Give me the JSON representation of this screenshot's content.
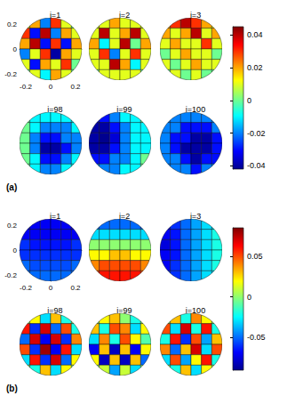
{
  "chart_data": [
    {
      "type": "heatmap",
      "panel_label": "(a)",
      "xlim": [
        -0.25,
        0.25
      ],
      "ylim": [
        -0.25,
        0.25
      ],
      "xticks": [
        -0.2,
        0,
        0.2
      ],
      "yticks": [
        -0.2,
        0,
        0.2
      ],
      "colorbar": {
        "range": [
          -0.042,
          0.045
        ],
        "ticks": [
          -0.04,
          -0.02,
          0,
          0.02,
          0.04
        ]
      },
      "spheres": [
        {
          "title": "i=1",
          "cells": [
            [
              0.01,
              0.02,
              -0.02,
              0.03,
              0.01,
              0.0
            ],
            [
              0.03,
              -0.03,
              0.04,
              -0.02,
              0.02,
              0.01
            ],
            [
              0.02,
              0.04,
              -0.03,
              0.03,
              -0.03,
              0.02
            ],
            [
              -0.02,
              0.01,
              0.03,
              -0.04,
              0.02,
              0.01
            ],
            [
              0.01,
              -0.03,
              0.02,
              0.01,
              0.03,
              0.0
            ],
            [
              0.0,
              0.01,
              -0.01,
              0.02,
              0.01,
              0.0
            ]
          ]
        },
        {
          "title": "i=2",
          "cells": [
            [
              0.01,
              0.01,
              0.02,
              0.01,
              0.01,
              0.01
            ],
            [
              0.01,
              0.04,
              0.01,
              0.02,
              0.04,
              0.01
            ],
            [
              0.02,
              -0.01,
              0.01,
              0.04,
              0.0,
              0.02
            ],
            [
              0.01,
              0.03,
              -0.02,
              0.01,
              0.03,
              0.01
            ],
            [
              0.01,
              0.01,
              0.04,
              0.02,
              -0.01,
              0.01
            ],
            [
              0.0,
              0.01,
              0.01,
              0.01,
              0.01,
              0.0
            ]
          ]
        },
        {
          "title": "i=3",
          "cells": [
            [
              0.02,
              0.03,
              0.04,
              0.03,
              0.02,
              0.01
            ],
            [
              0.02,
              0.01,
              0.02,
              0.04,
              0.01,
              0.02
            ],
            [
              0.01,
              0.02,
              0.01,
              0.01,
              0.03,
              0.01
            ],
            [
              0.0,
              0.01,
              0.02,
              0.01,
              0.01,
              0.0
            ],
            [
              0.01,
              0.0,
              0.01,
              0.02,
              0.01,
              0.01
            ],
            [
              0.0,
              0.01,
              0.0,
              0.01,
              0.0,
              0.0
            ]
          ]
        },
        {
          "title": "i=98",
          "cells": [
            [
              0.0,
              -0.01,
              -0.01,
              -0.01,
              -0.01,
              -0.01
            ],
            [
              0.0,
              -0.01,
              -0.02,
              -0.02,
              -0.02,
              -0.01
            ],
            [
              0.0,
              -0.02,
              -0.03,
              -0.03,
              -0.02,
              -0.02
            ],
            [
              0.0,
              -0.02,
              -0.04,
              -0.04,
              -0.03,
              -0.02
            ],
            [
              0.0,
              -0.01,
              -0.03,
              -0.03,
              -0.02,
              -0.01
            ],
            [
              0.0,
              -0.01,
              -0.02,
              -0.02,
              -0.01,
              -0.01
            ]
          ]
        },
        {
          "title": "i=99",
          "cells": [
            [
              -0.03,
              -0.03,
              -0.02,
              -0.01,
              -0.01,
              0.0
            ],
            [
              -0.04,
              -0.04,
              -0.03,
              -0.02,
              -0.01,
              -0.01
            ],
            [
              -0.04,
              -0.045,
              -0.035,
              -0.02,
              -0.01,
              -0.01
            ],
            [
              -0.04,
              -0.04,
              -0.03,
              -0.02,
              -0.01,
              -0.01
            ],
            [
              -0.03,
              -0.03,
              -0.02,
              -0.02,
              -0.01,
              0.0
            ],
            [
              -0.02,
              -0.02,
              -0.02,
              -0.01,
              -0.01,
              0.0
            ]
          ]
        },
        {
          "title": "i=100",
          "cells": [
            [
              -0.02,
              -0.02,
              -0.02,
              -0.02,
              -0.02,
              -0.02
            ],
            [
              -0.02,
              -0.02,
              -0.03,
              -0.03,
              -0.03,
              -0.02
            ],
            [
              -0.02,
              -0.03,
              -0.03,
              -0.04,
              -0.04,
              -0.03
            ],
            [
              -0.02,
              -0.03,
              -0.04,
              -0.04,
              -0.04,
              -0.03
            ],
            [
              -0.02,
              -0.02,
              -0.03,
              -0.04,
              -0.03,
              -0.03
            ],
            [
              -0.02,
              -0.02,
              -0.02,
              -0.03,
              -0.02,
              -0.02
            ]
          ]
        }
      ]
    },
    {
      "type": "heatmap",
      "panel_label": "(b)",
      "xlim": [
        -0.25,
        0.25
      ],
      "ylim": [
        -0.25,
        0.25
      ],
      "xticks": [
        -0.2,
        0,
        0.2
      ],
      "yticks": [
        -0.2,
        0,
        0.2
      ],
      "colorbar": {
        "range": [
          -0.09,
          0.085
        ],
        "ticks": [
          -0.05,
          0,
          0.05
        ]
      },
      "spheres": [
        {
          "title": "i=1",
          "cells": [
            [
              -0.07,
              -0.07,
              -0.07,
              -0.07,
              -0.07,
              -0.07
            ],
            [
              -0.07,
              -0.07,
              -0.07,
              -0.07,
              -0.07,
              -0.07
            ],
            [
              -0.06,
              -0.065,
              -0.065,
              -0.065,
              -0.065,
              -0.06
            ],
            [
              -0.06,
              -0.06,
              -0.06,
              -0.06,
              -0.06,
              -0.06
            ],
            [
              -0.05,
              -0.055,
              -0.055,
              -0.055,
              -0.055,
              -0.05
            ],
            [
              -0.05,
              -0.05,
              -0.05,
              -0.05,
              -0.05,
              -0.05
            ]
          ]
        },
        {
          "title": "i=2",
          "cells": [
            [
              -0.05,
              -0.05,
              -0.05,
              -0.05,
              -0.05,
              -0.05
            ],
            [
              -0.03,
              -0.03,
              -0.03,
              -0.03,
              -0.03,
              -0.03
            ],
            [
              0.0,
              0.0,
              0.0,
              0.0,
              0.0,
              0.0
            ],
            [
              0.02,
              0.02,
              0.03,
              0.03,
              0.02,
              0.02
            ],
            [
              0.04,
              0.05,
              0.05,
              0.05,
              0.05,
              0.04
            ],
            [
              0.05,
              0.06,
              0.06,
              0.06,
              0.06,
              0.05
            ]
          ]
        },
        {
          "title": "i=3",
          "cells": [
            [
              -0.07,
              -0.06,
              -0.05,
              -0.04,
              -0.03,
              -0.03
            ],
            [
              -0.07,
              -0.065,
              -0.05,
              -0.04,
              -0.03,
              -0.02
            ],
            [
              -0.075,
              -0.065,
              -0.05,
              -0.04,
              -0.03,
              -0.02
            ],
            [
              -0.07,
              -0.065,
              -0.05,
              -0.04,
              -0.03,
              -0.02
            ],
            [
              -0.07,
              -0.06,
              -0.05,
              -0.04,
              -0.03,
              -0.02
            ],
            [
              -0.06,
              -0.06,
              -0.05,
              -0.04,
              -0.03,
              -0.03
            ]
          ]
        },
        {
          "title": "i=98",
          "cells": [
            [
              0.0,
              0.02,
              -0.03,
              0.03,
              -0.02,
              0.0
            ],
            [
              0.06,
              -0.06,
              0.07,
              -0.05,
              0.05,
              -0.02
            ],
            [
              -0.05,
              0.07,
              -0.07,
              0.07,
              -0.06,
              0.04
            ],
            [
              0.05,
              -0.06,
              0.08,
              -0.07,
              0.06,
              -0.03
            ],
            [
              -0.03,
              0.06,
              -0.06,
              0.07,
              -0.05,
              0.02
            ],
            [
              0.0,
              -0.02,
              0.03,
              -0.03,
              0.02,
              0.0
            ]
          ]
        },
        {
          "title": "i=99",
          "cells": [
            [
              0.0,
              0.02,
              0.03,
              0.0,
              -0.02,
              0.0
            ],
            [
              0.03,
              -0.02,
              0.05,
              0.04,
              -0.03,
              0.02
            ],
            [
              -0.03,
              0.04,
              -0.02,
              0.05,
              0.02,
              -0.01
            ],
            [
              -0.07,
              0.03,
              -0.08,
              0.03,
              -0.07,
              0.02
            ],
            [
              0.02,
              -0.08,
              0.03,
              -0.08,
              0.03,
              -0.05
            ],
            [
              0.0,
              0.01,
              -0.04,
              0.01,
              -0.03,
              0.0
            ]
          ]
        },
        {
          "title": "i=100",
          "cells": [
            [
              0.0,
              0.03,
              -0.02,
              0.04,
              0.02,
              0.0
            ],
            [
              0.05,
              -0.03,
              0.07,
              -0.02,
              0.06,
              -0.02
            ],
            [
              -0.02,
              0.06,
              -0.06,
              0.05,
              -0.04,
              0.03
            ],
            [
              0.04,
              -0.05,
              0.03,
              0.07,
              -0.03,
              0.05
            ],
            [
              -0.03,
              0.05,
              -0.04,
              0.02,
              0.06,
              -0.02
            ],
            [
              0.0,
              -0.02,
              0.03,
              -0.03,
              0.02,
              0.0
            ]
          ]
        }
      ]
    }
  ]
}
